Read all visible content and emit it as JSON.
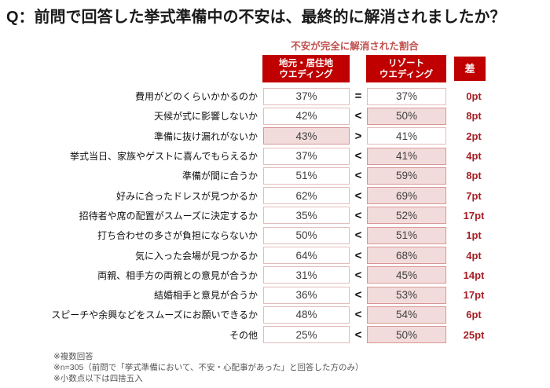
{
  "title": "Q：前問で回答した挙式準備中の不安は、最終的に解消されましたか？",
  "subtitle": "不安が完全に解消された割合",
  "columns": {
    "local_line1": "地元・居住地",
    "local_line2": "ウエディング",
    "resort_line1": "リゾート",
    "resort_line2": "ウエディング",
    "diff": "差"
  },
  "rows": [
    {
      "label": "費用がどのくらいかかるのか",
      "local": "37%",
      "comparison": "=",
      "resort": "37%",
      "diff": "0pt",
      "local_highlight": false,
      "resort_highlight": false
    },
    {
      "label": "天候が式に影響しないか",
      "local": "42%",
      "comparison": "<",
      "resort": "50%",
      "diff": "8pt",
      "local_highlight": false,
      "resort_highlight": true
    },
    {
      "label": "準備に抜け漏れがないか",
      "local": "43%",
      "comparison": ">",
      "resort": "41%",
      "diff": "2pt",
      "local_highlight": true,
      "resort_highlight": false
    },
    {
      "label": "挙式当日、家族やゲストに喜んでもらえるか",
      "local": "37%",
      "comparison": "<",
      "resort": "41%",
      "diff": "4pt",
      "local_highlight": false,
      "resort_highlight": true
    },
    {
      "label": "準備が間に合うか",
      "local": "51%",
      "comparison": "<",
      "resort": "59%",
      "diff": "8pt",
      "local_highlight": false,
      "resort_highlight": true
    },
    {
      "label": "好みに合ったドレスが見つかるか",
      "local": "62%",
      "comparison": "<",
      "resort": "69%",
      "diff": "7pt",
      "local_highlight": false,
      "resort_highlight": true
    },
    {
      "label": "招待者や席の配置がスムーズに決定するか",
      "local": "35%",
      "comparison": "<",
      "resort": "52%",
      "diff": "17pt",
      "local_highlight": false,
      "resort_highlight": true
    },
    {
      "label": "打ち合わせの多さが負担にならないか",
      "local": "50%",
      "comparison": "<",
      "resort": "51%",
      "diff": "1pt",
      "local_highlight": false,
      "resort_highlight": true
    },
    {
      "label": "気に入った会場が見つかるか",
      "local": "64%",
      "comparison": "<",
      "resort": "68%",
      "diff": "4pt",
      "local_highlight": false,
      "resort_highlight": true
    },
    {
      "label": "両親、相手方の両親との意見が合うか",
      "local": "31%",
      "comparison": "<",
      "resort": "45%",
      "diff": "14pt",
      "local_highlight": false,
      "resort_highlight": true
    },
    {
      "label": "結婚相手と意見が合うか",
      "local": "36%",
      "comparison": "<",
      "resort": "53%",
      "diff": "17pt",
      "local_highlight": false,
      "resort_highlight": true
    },
    {
      "label": "スピーチや余興などをスムーズにお願いできるか",
      "local": "48%",
      "comparison": "<",
      "resort": "54%",
      "diff": "6pt",
      "local_highlight": false,
      "resort_highlight": true
    },
    {
      "label": "その他",
      "local": "25%",
      "comparison": "<",
      "resort": "50%",
      "diff": "25pt",
      "local_highlight": false,
      "resort_highlight": true
    }
  ],
  "footnotes": [
    "※複数回答",
    "※n=305（前問で「挙式準備において、不安・心配事があった」と回答した方のみ）",
    "※小数点以下は四捨五入"
  ],
  "colors": {
    "header_bg": "#c00000",
    "header_text": "#ffffff",
    "highlight_fill": "#f2dcdb",
    "cell_border": "#e3bcba",
    "highlight_border": "#d99694",
    "subtitle_text": "#c0504d",
    "diff_text": "#a61f25"
  },
  "chart_data": {
    "type": "table",
    "title": "Q：前問で回答した挙式準備中の不安は、最終的に解消されましたか？",
    "subtitle": "不安が完全に解消された割合",
    "unit": "%",
    "categories": [
      "費用がどのくらいかかるのか",
      "天候が式に影響しないか",
      "準備に抜け漏れがないか",
      "挙式当日、家族やゲストに喜んでもらえるか",
      "準備が間に合うか",
      "好みに合ったドレスが見つかるか",
      "招待者や席の配置がスムーズに決定するか",
      "打ち合わせの多さが負担にならないか",
      "気に入った会場が見つかるか",
      "両親、相手方の両親との意見が合うか",
      "結婚相手と意見が合うか",
      "スピーチや余興などをスムーズにお願いできるか",
      "その他"
    ],
    "series": [
      {
        "name": "地元・居住地ウエディング",
        "values": [
          37,
          42,
          43,
          37,
          51,
          62,
          35,
          50,
          64,
          31,
          36,
          48,
          25
        ]
      },
      {
        "name": "リゾートウエディング",
        "values": [
          37,
          50,
          41,
          41,
          59,
          69,
          52,
          51,
          68,
          45,
          53,
          54,
          50
        ]
      }
    ],
    "comparisons": [
      "=",
      "<",
      ">",
      "<",
      "<",
      "<",
      "<",
      "<",
      "<",
      "<",
      "<",
      "<",
      "<"
    ],
    "diffs_pt": [
      0,
      8,
      2,
      4,
      8,
      7,
      17,
      1,
      4,
      14,
      17,
      6,
      25
    ]
  }
}
